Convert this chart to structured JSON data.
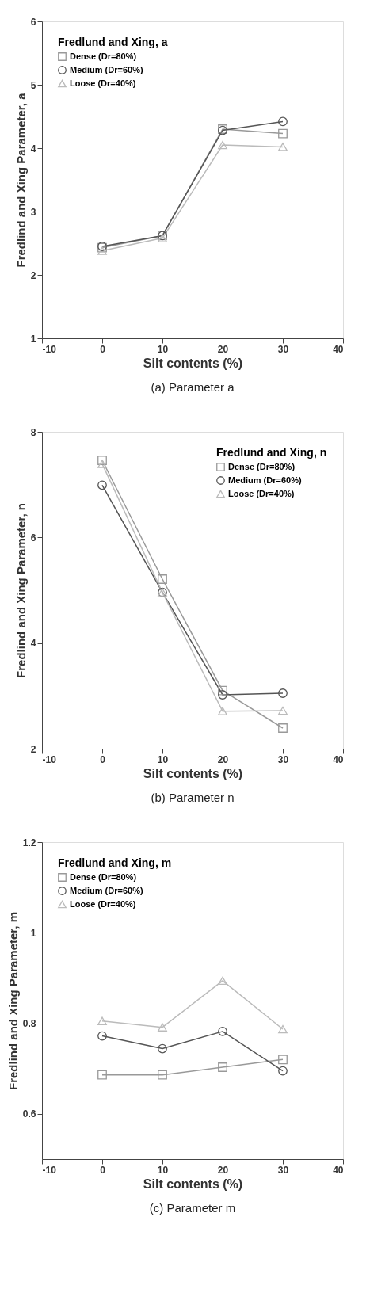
{
  "chart_data": [
    {
      "type": "line",
      "legend_title": "Fredlund and Xing, a",
      "xlabel": "Silt contents (%)",
      "ylabel": "Fredlind and Xing Parameter, a",
      "x": [
        0,
        10,
        20,
        30
      ],
      "xlim": [
        -10,
        40
      ],
      "xticks": [
        -10,
        0,
        10,
        20,
        30,
        40
      ],
      "ylim": [
        1,
        6
      ],
      "yticks": [
        1,
        2,
        3,
        4,
        5,
        6
      ],
      "grid": false,
      "legend": "top left",
      "annotations": [
        "(a)  Parameter  a"
      ],
      "series": [
        {
          "name": "Dense    (Dr=80%)",
          "color": "#999999",
          "marker": "square",
          "values": [
            2.43,
            2.62,
            4.3,
            4.23
          ]
        },
        {
          "name": "Medium (Dr=60%)",
          "color": "#555555",
          "marker": "circle",
          "values": [
            2.45,
            2.62,
            4.28,
            4.42
          ]
        },
        {
          "name": "Loose    (Dr=40%)",
          "color": "#bbbbbb",
          "marker": "triangle",
          "values": [
            2.38,
            2.58,
            4.05,
            4.02
          ]
        }
      ]
    },
    {
      "type": "line",
      "legend_title": "Fredlund and Xing, n",
      "xlabel": "Silt contents (%)",
      "ylabel": "Fredlind and Xing Parameter, n",
      "x": [
        0,
        10,
        20,
        30
      ],
      "xlim": [
        -10,
        40
      ],
      "xticks": [
        -10,
        0,
        10,
        20,
        30,
        40
      ],
      "ylim": [
        2,
        8
      ],
      "yticks": [
        2,
        4,
        6,
        8
      ],
      "grid": false,
      "legend": "top right",
      "annotations": [
        "(b)  Parameter  n"
      ],
      "series": [
        {
          "name": "Dense    (Dr=80%)",
          "color": "#999999",
          "marker": "square",
          "values": [
            7.46,
            5.21,
            3.1,
            2.39
          ]
        },
        {
          "name": "Medium (Dr=60%)",
          "color": "#555555",
          "marker": "circle",
          "values": [
            6.99,
            4.96,
            3.02,
            3.05
          ]
        },
        {
          "name": "Loose    (Dr=40%)",
          "color": "#bbbbbb",
          "marker": "triangle",
          "values": [
            7.39,
            4.96,
            2.71,
            2.72
          ]
        }
      ]
    },
    {
      "type": "line",
      "legend_title": "Fredlund and Xing, m",
      "xlabel": "Silt contents (%)",
      "ylabel": "Fredlind and Xing Parameter, m",
      "x": [
        0,
        10,
        20,
        30
      ],
      "xlim": [
        -10,
        40
      ],
      "xticks": [
        -10,
        0,
        10,
        20,
        30,
        40
      ],
      "ylim": [
        0.5,
        1.2
      ],
      "yticks": [
        0.6,
        0.8,
        1,
        1.2
      ],
      "grid": false,
      "legend": "top left",
      "annotations": [
        "(c)  Parameter  m"
      ],
      "series": [
        {
          "name": "Dense    (Dr=80%)",
          "color": "#999999",
          "marker": "square",
          "values": [
            0.686,
            0.686,
            0.703,
            0.72
          ]
        },
        {
          "name": "Medium (Dr=60%)",
          "color": "#555555",
          "marker": "circle",
          "values": [
            0.772,
            0.744,
            0.782,
            0.695
          ]
        },
        {
          "name": "Loose    (Dr=40%)",
          "color": "#bbbbbb",
          "marker": "triangle",
          "values": [
            0.805,
            0.791,
            0.894,
            0.787
          ]
        }
      ]
    }
  ]
}
